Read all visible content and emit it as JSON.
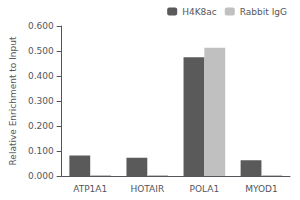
{
  "chart_data": {
    "type": "bar",
    "categories": [
      "ATP1A1",
      "HOTAIR",
      "POLA1",
      "MYOD1"
    ],
    "series": [
      {
        "name": "H4K8ac",
        "color": "#5a5a5a",
        "values": [
          0.082,
          0.073,
          0.475,
          0.063
        ]
      },
      {
        "name": "Rabbit IgG",
        "color": "#c0c0c0",
        "values": [
          0.004,
          0.004,
          0.513,
          0.004
        ]
      }
    ],
    "ylabel": "Relative Enrichment to Input",
    "ylim": [
      0.0,
      0.6
    ],
    "yticks": [
      {
        "value": 0.0,
        "label": "0.000"
      },
      {
        "value": 0.1,
        "label": "0.100"
      },
      {
        "value": 0.2,
        "label": "0.200"
      },
      {
        "value": 0.3,
        "label": "0.300"
      },
      {
        "value": 0.4,
        "label": "0.400"
      },
      {
        "value": 0.5,
        "label": "0.500"
      },
      {
        "value": 0.6,
        "label": "0.600"
      }
    ],
    "grid": false,
    "legend": "upper right"
  }
}
